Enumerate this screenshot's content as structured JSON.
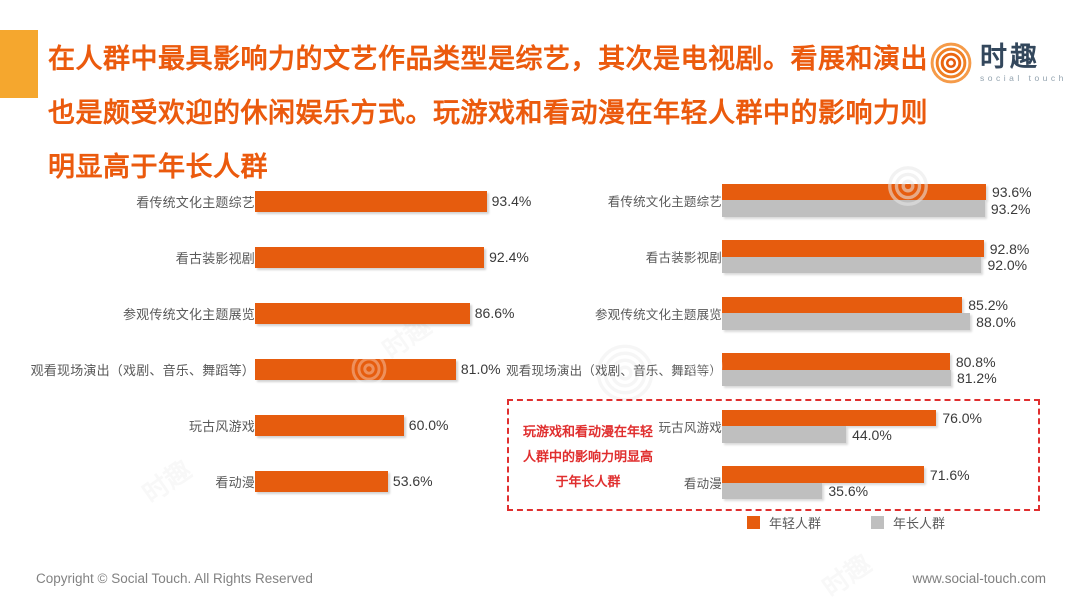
{
  "header": {
    "title_lines": [
      "在人群中最具影响力的文艺作品类型是综艺，其次是电视剧。看展和演出",
      "也是颇受欢迎的休闲娱乐方式。玩游戏和看动漫在年轻人群中的影响力则",
      "明显高于年长人群"
    ],
    "logo": {
      "name": "时趣",
      "subtitle": "social touch"
    }
  },
  "colors": {
    "orange": "#E65C0E",
    "gray": "#BFBFBF",
    "red": "#E02F2F",
    "yellow": "#F5A72E",
    "title": "#EB5A0D",
    "navy": "#33475C"
  },
  "chart_data": [
    {
      "type": "bar",
      "orientation": "horizontal",
      "title": "",
      "categories": [
        "看传统文化主题综艺",
        "看古装影视剧",
        "参观传统文化主题展览",
        "观看现场演出（戏剧、音乐、舞蹈等）",
        "玩古风游戏",
        "看动漫"
      ],
      "values": [
        93.4,
        92.4,
        86.6,
        81.0,
        60.0,
        53.6
      ],
      "value_labels": [
        "93.4%",
        "92.4%",
        "86.6%",
        "81.0%",
        "60.0%",
        "53.6%"
      ],
      "bar_color": "#E65C0E",
      "xlim": [
        0,
        100
      ],
      "grid": false,
      "value_label_position": "end-of-bar"
    },
    {
      "type": "bar",
      "orientation": "horizontal",
      "title": "",
      "categories": [
        "看传统文化主题综艺",
        "看古装影视剧",
        "参观传统文化主题展览",
        "观看现场演出（戏剧、音乐、舞蹈等）",
        "玩古风游戏",
        "看动漫"
      ],
      "series": [
        {
          "name": "年轻人群",
          "color": "#E65C0E",
          "values": [
            93.6,
            92.8,
            85.2,
            80.8,
            76.0,
            71.6
          ],
          "labels": [
            "93.6%",
            "92.8%",
            "85.2%",
            "80.8%",
            "76.0%",
            "71.6%"
          ]
        },
        {
          "name": "年长人群",
          "color": "#BFBFBF",
          "values": [
            93.2,
            92.0,
            88.0,
            81.2,
            44.0,
            35.6
          ],
          "labels": [
            "93.2%",
            "92.0%",
            "88.0%",
            "81.2%",
            "44.0%",
            "35.6%"
          ]
        }
      ],
      "xlim": [
        0,
        100
      ],
      "grid": false,
      "legend_position": "bottom-right",
      "annotation": {
        "text_lines": [
          "玩游戏和看动漫在年轻",
          "人群中的影响力明显高",
          "于年长人群"
        ],
        "style": "red-dashed-box",
        "border_color": "#E02F2F",
        "covers_categories": [
          "玩古风游戏",
          "看动漫"
        ]
      }
    }
  ],
  "legend": [
    {
      "label": "年轻人群",
      "color": "#E65C0E"
    },
    {
      "label": "年长人群",
      "color": "#BFBFBF"
    }
  ],
  "footer": {
    "copyright": "Copyright © Social Touch. All Rights Reserved",
    "website": "www.social-touch.com"
  },
  "watermark_text": "时趣"
}
